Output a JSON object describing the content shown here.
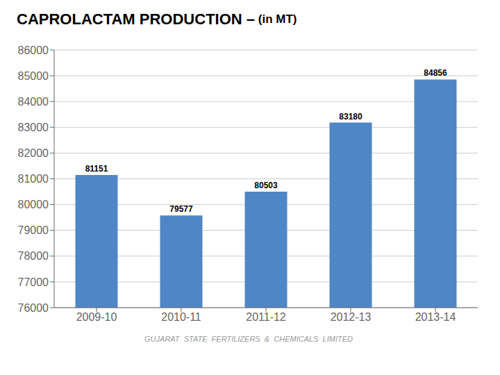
{
  "chart_data": {
    "type": "bar",
    "title": "CAPROLACTAM PRODUCTION –",
    "subtitle": " (in MT)",
    "categories": [
      "2009-10",
      "2010-11",
      "2011-12",
      "2012-13",
      "2013-14"
    ],
    "values": [
      81151,
      79577,
      80503,
      83180,
      84856
    ],
    "color": "#4f86c6",
    "ylim": [
      76000,
      86000
    ],
    "yticks": [
      76000,
      77000,
      78000,
      79000,
      80000,
      81000,
      82000,
      83000,
      84000,
      85000,
      86000
    ],
    "grid": true,
    "data_labels": true,
    "annotations": [
      "GUJARAT  STATE  FERTILIZERS  &  CHEMICALS  LIMITED"
    ]
  }
}
